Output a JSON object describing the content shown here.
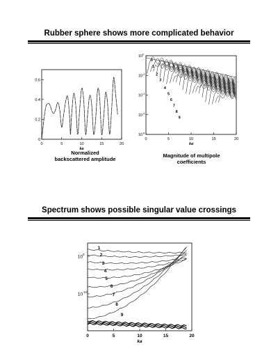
{
  "slide1": {
    "heading": "Rubber sphere shows more complicated behavior",
    "left_caption_line1": "Normalized",
    "left_caption_line2": "backscattered amplitude",
    "right_caption_line1": "Magnitude of multipole",
    "right_caption_line2": "coefficients"
  },
  "slide2": {
    "heading": "Spectrum shows possible singular value crossings"
  },
  "chart_data": [
    {
      "type": "line",
      "title": "",
      "xlabel": "ka",
      "ylabel": "",
      "xlim": [
        0,
        20
      ],
      "ylim": [
        0,
        0.7
      ],
      "xticks": [
        "0",
        "5",
        "10",
        "15",
        "20"
      ],
      "yticks": [
        "0",
        "0.2",
        "0.4",
        "0.6"
      ],
      "series": [
        {
          "values_description_free": true,
          "x": [
            0,
            0.5,
            1,
            1.5,
            2,
            2.5,
            3,
            3.5,
            4,
            4.5,
            5,
            5.5,
            6,
            6.5,
            7,
            7.2,
            7.5,
            8,
            8.5,
            9,
            9.5,
            10,
            10.5,
            11,
            11.5,
            12,
            12.5,
            13,
            13.5,
            14,
            14.5,
            15,
            15.5,
            16,
            16.5,
            17,
            17.5,
            18,
            18.5,
            19
          ],
          "y": [
            0.0,
            0.18,
            0.32,
            0.36,
            0.35,
            0.29,
            0.26,
            0.3,
            0.37,
            0.3,
            0.12,
            0.25,
            0.38,
            0.43,
            0.22,
            0.05,
            0.25,
            0.46,
            0.35,
            0.05,
            0.3,
            0.51,
            0.4,
            0.05,
            0.25,
            0.44,
            0.35,
            0.05,
            0.2,
            0.5,
            0.42,
            0.05,
            0.22,
            0.47,
            0.35,
            0.05,
            0.3,
            0.62,
            0.45,
            0.25
          ]
        }
      ]
    },
    {
      "type": "line",
      "title": "",
      "xlabel": "ka",
      "ylabel": "",
      "scale": "log",
      "xlim": [
        0,
        20
      ],
      "ylim_exponent": [
        -8,
        0
      ],
      "xticks": [
        "0",
        "5",
        "10",
        "15",
        "20"
      ],
      "yticks": [
        "10^0",
        "10^-2",
        "10^-4",
        "10^-6",
        "10^-8"
      ],
      "series_labels": [
        "0",
        "1",
        "2",
        "3",
        "4",
        "5",
        "6",
        "7",
        "8",
        "9"
      ]
    },
    {
      "type": "line",
      "title": "",
      "xlabel": "ka",
      "ylabel": "",
      "scale": "log",
      "xlim": [
        0,
        20
      ],
      "xticks": [
        "0",
        "5",
        "10",
        "15",
        "20"
      ],
      "yticks": [
        "10^0",
        "10^-10"
      ],
      "series_labels": [
        "1",
        "2",
        "3",
        "4",
        "5",
        "6",
        "7",
        "8",
        "9"
      ]
    }
  ]
}
